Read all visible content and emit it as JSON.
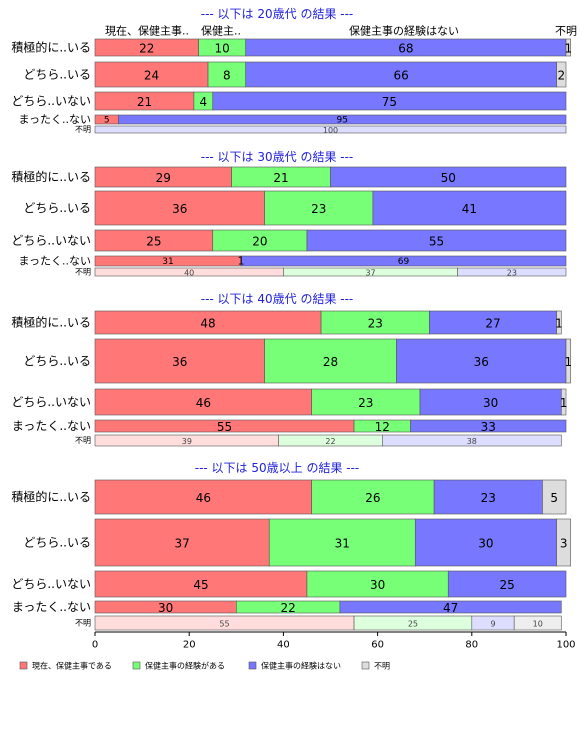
{
  "chart_data": {
    "type": "bar",
    "orientation": "horizontal-stacked-percent",
    "row_labels": [
      "積極的に..いる",
      "どちら..いる",
      "どちら..いない",
      "まったく..ない",
      "不明"
    ],
    "column_headers": [
      "現在、保健主事..",
      "保健主..",
      "保健主事の経験はない",
      "不明"
    ],
    "series": [
      {
        "name": "現在、保健主事である",
        "color": "#ff7777",
        "light_color": "#ffdddd"
      },
      {
        "name": "保健主事の経験がある",
        "color": "#77ff77",
        "light_color": "#ddffdd"
      },
      {
        "name": "保健主事の経験はない",
        "color": "#7777ff",
        "light_color": "#ddddff"
      },
      {
        "name": "不明",
        "color": "#dddddd",
        "light_color": "#eeeeee"
      }
    ],
    "panels": [
      {
        "title": "--- 以下は 20歳代 の結果 ---",
        "rows": [
          [
            22,
            10,
            68,
            1
          ],
          [
            24,
            8,
            66,
            2
          ],
          [
            21,
            4,
            75,
            0
          ],
          [
            5,
            0,
            95,
            0
          ],
          [
            0,
            0,
            100,
            0
          ]
        ]
      },
      {
        "title": "--- 以下は 30歳代 の結果 ---",
        "rows": [
          [
            29,
            21,
            50,
            0
          ],
          [
            36,
            23,
            41,
            0
          ],
          [
            25,
            20,
            55,
            0
          ],
          [
            31,
            0,
            69,
            0
          ],
          [
            40,
            37,
            23,
            0
          ]
        ]
      },
      {
        "title": "--- 以下は 40歳代 の結果 ---",
        "rows": [
          [
            48,
            23,
            27,
            1
          ],
          [
            36,
            28,
            36,
            1
          ],
          [
            46,
            23,
            30,
            1
          ],
          [
            55,
            12,
            33,
            0
          ],
          [
            39,
            22,
            38,
            0
          ]
        ]
      },
      {
        "title": "--- 以下は 50歳以上 の結果 ---",
        "rows": [
          [
            46,
            26,
            23,
            5
          ],
          [
            37,
            31,
            30,
            3
          ],
          [
            45,
            30,
            25,
            0
          ],
          [
            30,
            22,
            47,
            0
          ],
          [
            55,
            25,
            9,
            10
          ]
        ]
      }
    ],
    "extra_labels": {
      "p1_row4_col2_label": "1"
    },
    "xlim": [
      0,
      100
    ],
    "xticks": [
      0,
      20,
      40,
      60,
      80,
      100
    ],
    "legend_position": "bottom"
  }
}
